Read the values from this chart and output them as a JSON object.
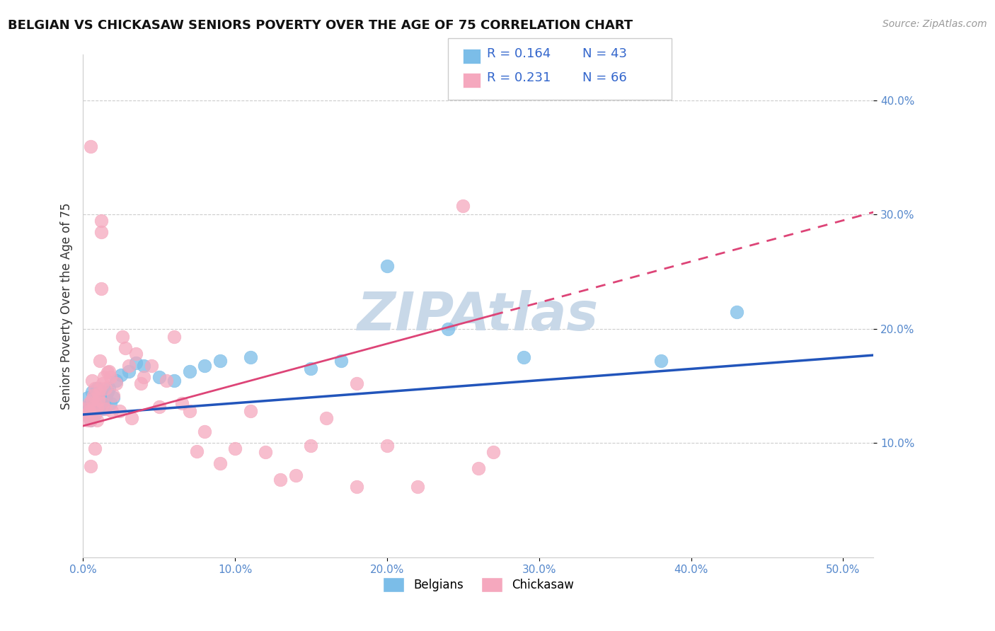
{
  "title": "BELGIAN VS CHICKASAW SENIORS POVERTY OVER THE AGE OF 75 CORRELATION CHART",
  "source": "Source: ZipAtlas.com",
  "ylabel": "Seniors Poverty Over the Age of 75",
  "xlim": [
    0.0,
    0.52
  ],
  "ylim": [
    0.0,
    0.44
  ],
  "xticks": [
    0.0,
    0.1,
    0.2,
    0.3,
    0.4,
    0.5
  ],
  "xticklabels": [
    "0.0%",
    "10.0%",
    "20.0%",
    "30.0%",
    "40.0%",
    "50.0%"
  ],
  "yticks": [
    0.1,
    0.2,
    0.3,
    0.4
  ],
  "yticklabels": [
    "10.0%",
    "20.0%",
    "30.0%",
    "40.0%"
  ],
  "belgian_color": "#7BBDE8",
  "chickasaw_color": "#F5A8BE",
  "line_belgian_color": "#2255BB",
  "line_chickasaw_color": "#DD4477",
  "watermark_color": "#c8d8e8",
  "watermark": "ZIPAtlas",
  "legend_R_belgian": "R = 0.164",
  "legend_N_belgian": "N = 43",
  "legend_R_chickasaw": "R = 0.231",
  "legend_N_chickasaw": "N = 66",
  "belgian_x": [
    0.001,
    0.002,
    0.003,
    0.004,
    0.005,
    0.005,
    0.006,
    0.006,
    0.007,
    0.007,
    0.008,
    0.008,
    0.009,
    0.009,
    0.01,
    0.01,
    0.011,
    0.012,
    0.013,
    0.014,
    0.015,
    0.016,
    0.017,
    0.018,
    0.02,
    0.022,
    0.025,
    0.03,
    0.035,
    0.04,
    0.05,
    0.06,
    0.07,
    0.08,
    0.09,
    0.11,
    0.15,
    0.17,
    0.2,
    0.24,
    0.29,
    0.38,
    0.43
  ],
  "belgian_y": [
    0.13,
    0.125,
    0.14,
    0.13,
    0.135,
    0.12,
    0.135,
    0.145,
    0.128,
    0.138,
    0.125,
    0.142,
    0.13,
    0.148,
    0.133,
    0.13,
    0.138,
    0.143,
    0.13,
    0.135,
    0.14,
    0.145,
    0.148,
    0.135,
    0.14,
    0.155,
    0.16,
    0.163,
    0.17,
    0.168,
    0.158,
    0.155,
    0.163,
    0.168,
    0.172,
    0.175,
    0.165,
    0.172,
    0.255,
    0.2,
    0.175,
    0.172,
    0.215
  ],
  "chickasaw_x": [
    0.001,
    0.002,
    0.003,
    0.004,
    0.004,
    0.005,
    0.005,
    0.006,
    0.006,
    0.007,
    0.007,
    0.008,
    0.008,
    0.009,
    0.009,
    0.01,
    0.01,
    0.011,
    0.011,
    0.012,
    0.012,
    0.013,
    0.013,
    0.014,
    0.015,
    0.015,
    0.016,
    0.017,
    0.018,
    0.019,
    0.02,
    0.022,
    0.024,
    0.026,
    0.028,
    0.03,
    0.032,
    0.035,
    0.038,
    0.04,
    0.045,
    0.05,
    0.055,
    0.06,
    0.065,
    0.07,
    0.075,
    0.08,
    0.09,
    0.1,
    0.11,
    0.12,
    0.13,
    0.14,
    0.15,
    0.16,
    0.18,
    0.2,
    0.22,
    0.25,
    0.27,
    0.005,
    0.008,
    0.012,
    0.18,
    0.26
  ],
  "chickasaw_y": [
    0.13,
    0.125,
    0.12,
    0.135,
    0.128,
    0.36,
    0.12,
    0.155,
    0.138,
    0.132,
    0.142,
    0.125,
    0.148,
    0.132,
    0.12,
    0.138,
    0.143,
    0.172,
    0.148,
    0.285,
    0.235,
    0.152,
    0.135,
    0.158,
    0.13,
    0.148,
    0.162,
    0.163,
    0.158,
    0.128,
    0.142,
    0.152,
    0.128,
    0.193,
    0.183,
    0.168,
    0.122,
    0.178,
    0.152,
    0.158,
    0.168,
    0.132,
    0.155,
    0.193,
    0.135,
    0.128,
    0.093,
    0.11,
    0.082,
    0.095,
    0.128,
    0.092,
    0.068,
    0.072,
    0.098,
    0.122,
    0.152,
    0.098,
    0.062,
    0.308,
    0.092,
    0.08,
    0.095,
    0.295,
    0.062,
    0.078
  ]
}
